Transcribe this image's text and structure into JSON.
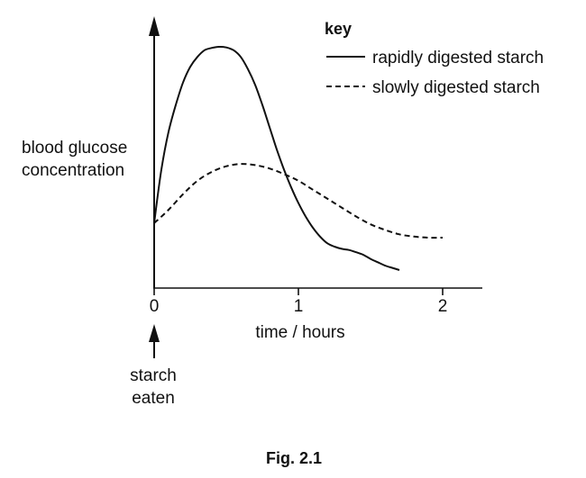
{
  "figure": {
    "caption": "Fig. 2.1"
  },
  "chart_data": {
    "type": "line",
    "ylabel": [
      "blood glucose",
      "concentration"
    ],
    "xlabel": "time / hours",
    "xlim": [
      0,
      2.25
    ],
    "ylim": [
      0,
      1
    ],
    "x_ticks": [
      "0",
      "1",
      "2"
    ],
    "y_ticks": [],
    "grid": false,
    "legend_title": "key",
    "legend_position": "top-right",
    "annotation": {
      "x": 0,
      "text": [
        "starch",
        "eaten"
      ]
    },
    "series": [
      {
        "name": "rapidly digested starch",
        "style": "solid",
        "color": "#111111",
        "points": [
          [
            0.0,
            0.21
          ],
          [
            0.05,
            0.45
          ],
          [
            0.1,
            0.62
          ],
          [
            0.15,
            0.74
          ],
          [
            0.2,
            0.84
          ],
          [
            0.25,
            0.91
          ],
          [
            0.3,
            0.955
          ],
          [
            0.35,
            0.985
          ],
          [
            0.4,
            0.995
          ],
          [
            0.45,
            1.0
          ],
          [
            0.5,
            0.997
          ],
          [
            0.55,
            0.985
          ],
          [
            0.6,
            0.955
          ],
          [
            0.65,
            0.9
          ],
          [
            0.7,
            0.83
          ],
          [
            0.75,
            0.74
          ],
          [
            0.8,
            0.64
          ],
          [
            0.85,
            0.54
          ],
          [
            0.9,
            0.45
          ],
          [
            0.95,
            0.37
          ],
          [
            1.0,
            0.3
          ],
          [
            1.05,
            0.24
          ],
          [
            1.1,
            0.19
          ],
          [
            1.15,
            0.15
          ],
          [
            1.2,
            0.12
          ],
          [
            1.25,
            0.105
          ],
          [
            1.3,
            0.095
          ],
          [
            1.35,
            0.09
          ],
          [
            1.4,
            0.08
          ],
          [
            1.45,
            0.068
          ],
          [
            1.5,
            0.05
          ],
          [
            1.55,
            0.035
          ],
          [
            1.6,
            0.02
          ],
          [
            1.65,
            0.01
          ],
          [
            1.7,
            0.0
          ]
        ]
      },
      {
        "name": "slowly digested starch",
        "style": "dashed",
        "color": "#111111",
        "points": [
          [
            0.0,
            0.21
          ],
          [
            0.1,
            0.27
          ],
          [
            0.2,
            0.34
          ],
          [
            0.3,
            0.4
          ],
          [
            0.4,
            0.44
          ],
          [
            0.5,
            0.465
          ],
          [
            0.6,
            0.475
          ],
          [
            0.7,
            0.47
          ],
          [
            0.8,
            0.455
          ],
          [
            0.9,
            0.43
          ],
          [
            1.0,
            0.4
          ],
          [
            1.1,
            0.36
          ],
          [
            1.2,
            0.32
          ],
          [
            1.3,
            0.28
          ],
          [
            1.4,
            0.24
          ],
          [
            1.5,
            0.205
          ],
          [
            1.6,
            0.18
          ],
          [
            1.7,
            0.16
          ],
          [
            1.8,
            0.15
          ],
          [
            1.9,
            0.145
          ],
          [
            2.0,
            0.145
          ]
        ]
      }
    ]
  }
}
